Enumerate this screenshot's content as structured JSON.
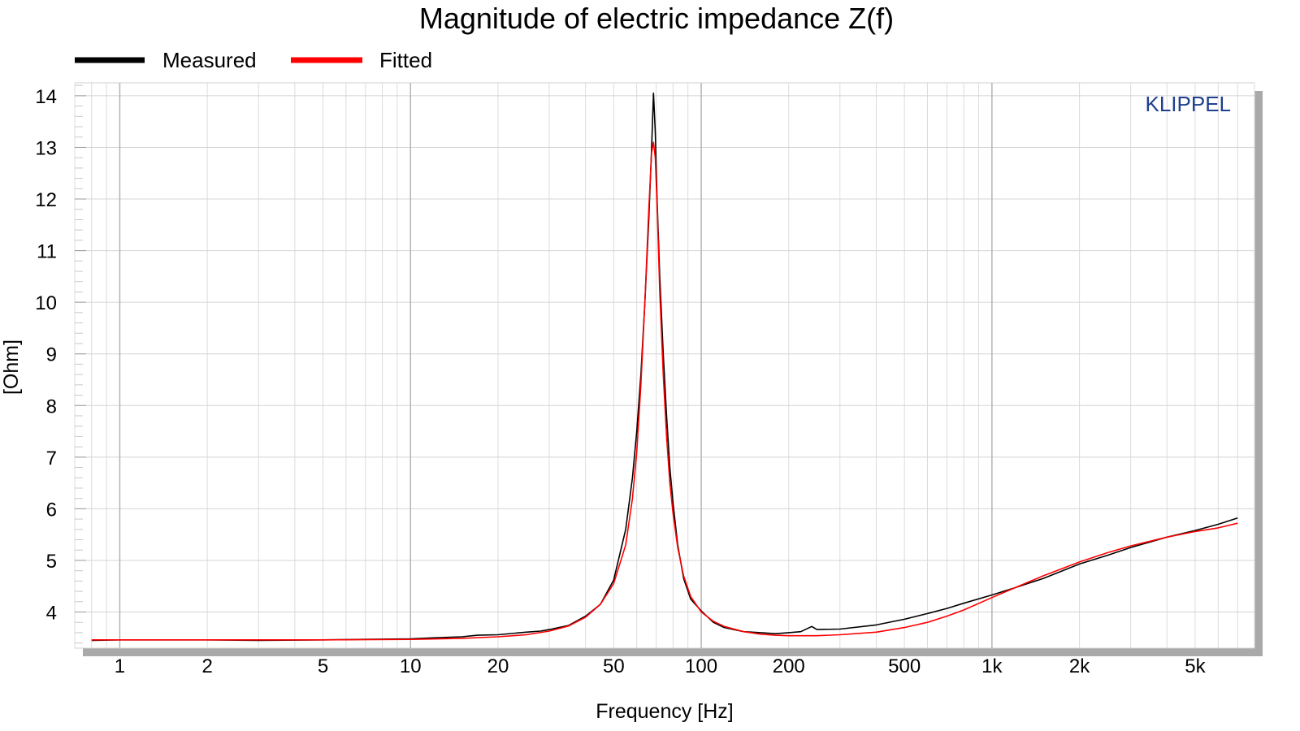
{
  "chart_data": {
    "type": "line",
    "title": "Magnitude of electric impedance Z(f)",
    "xlabel": "Frequency [Hz]",
    "ylabel": "[Ohm]",
    "xscale": "log",
    "xlim": [
      0.7,
      8000
    ],
    "ylim": [
      3.3,
      14.25
    ],
    "grid": true,
    "legend_position": "top-left",
    "watermark": "KLIPPEL",
    "x_ticks": [
      {
        "value": 1,
        "label": "1"
      },
      {
        "value": 2,
        "label": "2"
      },
      {
        "value": 5,
        "label": "5"
      },
      {
        "value": 10,
        "label": "10"
      },
      {
        "value": 20,
        "label": "20"
      },
      {
        "value": 50,
        "label": "50"
      },
      {
        "value": 100,
        "label": "100"
      },
      {
        "value": 200,
        "label": "200"
      },
      {
        "value": 500,
        "label": "500"
      },
      {
        "value": 1000,
        "label": "1k"
      },
      {
        "value": 2000,
        "label": "2k"
      },
      {
        "value": 5000,
        "label": "5k"
      }
    ],
    "y_ticks": [
      {
        "value": 4,
        "label": "4"
      },
      {
        "value": 5,
        "label": "5"
      },
      {
        "value": 6,
        "label": "6"
      },
      {
        "value": 7,
        "label": "7"
      },
      {
        "value": 8,
        "label": "8"
      },
      {
        "value": 9,
        "label": "9"
      },
      {
        "value": 10,
        "label": "10"
      },
      {
        "value": 11,
        "label": "11"
      },
      {
        "value": 12,
        "label": "12"
      },
      {
        "value": 13,
        "label": "13"
      },
      {
        "value": 14,
        "label": "14"
      }
    ],
    "series": [
      {
        "name": "Measured",
        "color": "#000000",
        "points": [
          [
            0.8,
            3.45
          ],
          [
            1,
            3.46
          ],
          [
            2,
            3.46
          ],
          [
            3,
            3.45
          ],
          [
            5,
            3.46
          ],
          [
            7,
            3.47
          ],
          [
            10,
            3.48
          ],
          [
            12,
            3.5
          ],
          [
            15,
            3.52
          ],
          [
            17,
            3.55
          ],
          [
            20,
            3.56
          ],
          [
            25,
            3.61
          ],
          [
            28,
            3.63
          ],
          [
            30,
            3.66
          ],
          [
            35,
            3.74
          ],
          [
            40,
            3.92
          ],
          [
            45,
            4.15
          ],
          [
            50,
            4.62
          ],
          [
            55,
            5.6
          ],
          [
            58,
            6.6
          ],
          [
            60,
            7.5
          ],
          [
            62,
            8.6
          ],
          [
            64,
            10.0
          ],
          [
            66,
            11.6
          ],
          [
            67.5,
            13.0
          ],
          [
            68.5,
            14.05
          ],
          [
            69.5,
            13.3
          ],
          [
            70.5,
            12.0
          ],
          [
            72,
            10.5
          ],
          [
            74,
            9.0
          ],
          [
            76,
            7.8
          ],
          [
            78,
            6.8
          ],
          [
            80,
            6.1
          ],
          [
            83,
            5.3
          ],
          [
            87,
            4.65
          ],
          [
            92,
            4.25
          ],
          [
            100,
            4.02
          ],
          [
            110,
            3.8
          ],
          [
            120,
            3.7
          ],
          [
            140,
            3.62
          ],
          [
            160,
            3.6
          ],
          [
            180,
            3.58
          ],
          [
            200,
            3.6
          ],
          [
            220,
            3.62
          ],
          [
            240,
            3.72
          ],
          [
            250,
            3.66
          ],
          [
            300,
            3.67
          ],
          [
            400,
            3.75
          ],
          [
            500,
            3.86
          ],
          [
            600,
            3.97
          ],
          [
            700,
            4.07
          ],
          [
            800,
            4.17
          ],
          [
            1000,
            4.33
          ],
          [
            1200,
            4.47
          ],
          [
            1500,
            4.65
          ],
          [
            2000,
            4.93
          ],
          [
            2500,
            5.1
          ],
          [
            3000,
            5.25
          ],
          [
            4000,
            5.45
          ],
          [
            5000,
            5.58
          ],
          [
            6000,
            5.7
          ],
          [
            7000,
            5.82
          ]
        ]
      },
      {
        "name": "Fitted",
        "color": "#ff0000",
        "points": [
          [
            0.8,
            3.46
          ],
          [
            1,
            3.46
          ],
          [
            2,
            3.46
          ],
          [
            5,
            3.46
          ],
          [
            10,
            3.47
          ],
          [
            15,
            3.49
          ],
          [
            20,
            3.52
          ],
          [
            25,
            3.56
          ],
          [
            30,
            3.63
          ],
          [
            35,
            3.73
          ],
          [
            40,
            3.9
          ],
          [
            45,
            4.15
          ],
          [
            50,
            4.55
          ],
          [
            55,
            5.3
          ],
          [
            58,
            6.2
          ],
          [
            60,
            7.1
          ],
          [
            62,
            8.4
          ],
          [
            64,
            10.0
          ],
          [
            66,
            11.8
          ],
          [
            67.5,
            12.9
          ],
          [
            68.5,
            13.1
          ],
          [
            69.5,
            12.8
          ],
          [
            70.5,
            11.9
          ],
          [
            72,
            10.2
          ],
          [
            74,
            8.6
          ],
          [
            76,
            7.4
          ],
          [
            78,
            6.5
          ],
          [
            80,
            5.9
          ],
          [
            83,
            5.25
          ],
          [
            87,
            4.7
          ],
          [
            92,
            4.3
          ],
          [
            100,
            4.0
          ],
          [
            110,
            3.82
          ],
          [
            120,
            3.72
          ],
          [
            140,
            3.62
          ],
          [
            160,
            3.57
          ],
          [
            180,
            3.55
          ],
          [
            200,
            3.54
          ],
          [
            250,
            3.54
          ],
          [
            300,
            3.56
          ],
          [
            400,
            3.61
          ],
          [
            500,
            3.7
          ],
          [
            600,
            3.8
          ],
          [
            700,
            3.92
          ],
          [
            800,
            4.04
          ],
          [
            1000,
            4.28
          ],
          [
            1200,
            4.47
          ],
          [
            1500,
            4.7
          ],
          [
            2000,
            4.97
          ],
          [
            2500,
            5.15
          ],
          [
            3000,
            5.28
          ],
          [
            4000,
            5.45
          ],
          [
            5000,
            5.56
          ],
          [
            6000,
            5.63
          ],
          [
            7000,
            5.72
          ]
        ]
      }
    ]
  }
}
